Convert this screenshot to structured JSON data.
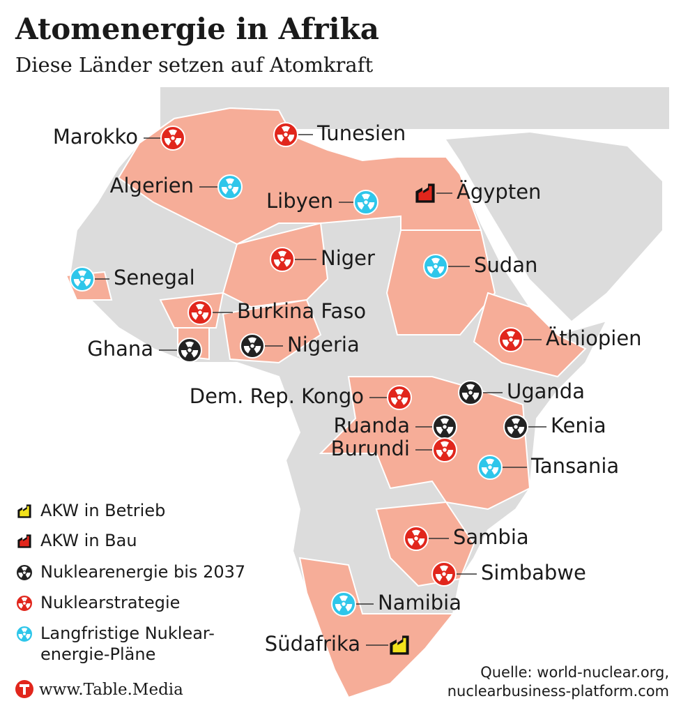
{
  "title": "Atomenergie in Afrika",
  "subtitle": "Diese Länder setzen auf Atomkraft",
  "legend": [
    {
      "label": "AKW in Betrieb",
      "color": "#f2e21c",
      "countries": [
        "Südafrika"
      ]
    },
    {
      "label": "AKW in Bau",
      "color": "#e1261c",
      "countries": [
        "Ägypten"
      ]
    },
    {
      "label": "Nuklearenergie bis 2037",
      "color": "#222222",
      "countries": [
        "Ghana",
        "Nigeria",
        "Uganda",
        "Ruanda",
        "Kenia"
      ]
    },
    {
      "label": "Nuklearstrategie",
      "color": "#e1261c",
      "countries": [
        "Marokko",
        "Tunesien",
        "Niger",
        "Burkina Faso",
        "Äthiopien",
        "Dem. Rep. Kongo",
        "Burundi",
        "Sambia",
        "Simbabwe"
      ]
    },
    {
      "label": [
        "Langfristige Nuklear-",
        "energie-Pläne"
      ],
      "color": "#2ec6ea",
      "countries": [
        "Algerien",
        "Libyen",
        "Senegal",
        "Sudan",
        "Tansania",
        "Namibia"
      ]
    }
  ],
  "source": [
    "Quelle: world-nuclear.org,",
    "nuclearbusiness-platform.com"
  ],
  "brand": "www.Table.Media"
}
